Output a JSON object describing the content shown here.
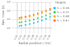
{
  "chart_data": {
    "type": "scatter",
    "xlabel": "Radial position r (m)",
    "ylabel": "Res. time (s)",
    "legend_title": "Heights",
    "x": [
      0.01,
      0.02,
      0.04,
      0.06,
      0.08,
      0.1,
      0.12,
      0.14,
      0.16
    ],
    "series": [
      {
        "name": "h = 0.16 m",
        "color": "#00BFFF",
        "marker": "square",
        "values": [
          18,
          20,
          24,
          30,
          40,
          55,
          80,
          120,
          200
        ]
      },
      {
        "name": "h = 0.11 m",
        "color": "#33CC33",
        "marker": "square",
        "values": [
          45,
          50,
          60,
          75,
          100,
          140,
          200,
          300,
          480
        ]
      },
      {
        "name": "h = 0.08 m",
        "color": "#FFA500",
        "marker": "square",
        "values": [
          130,
          145,
          175,
          220,
          290,
          400,
          570,
          840,
          1300
        ]
      },
      {
        "name": "h = 0.6 m",
        "color": "#FF6600",
        "marker": "square",
        "values": [
          160,
          180,
          215,
          270,
          360,
          500,
          710,
          1050,
          1650
        ]
      }
    ],
    "xlim": [
      -0.002,
      0.17
    ],
    "xticks": [
      {
        "value": 0.0,
        "label": "0.00"
      },
      0.02,
      0.04,
      0.06,
      0.08,
      {
        "value": 0.1,
        "label": "0.10"
      },
      0.12,
      0.14,
      0.16
    ],
    "ylim": [
      10,
      10000
    ],
    "yticks": [
      {
        "value": 10,
        "label": "10¹"
      },
      {
        "value": 100,
        "label": "10²"
      },
      {
        "value": 1000,
        "label": "10³"
      },
      {
        "value": 10000,
        "label": "10⁴"
      }
    ],
    "log": "y",
    "grid": true,
    "legend": "upper right"
  }
}
